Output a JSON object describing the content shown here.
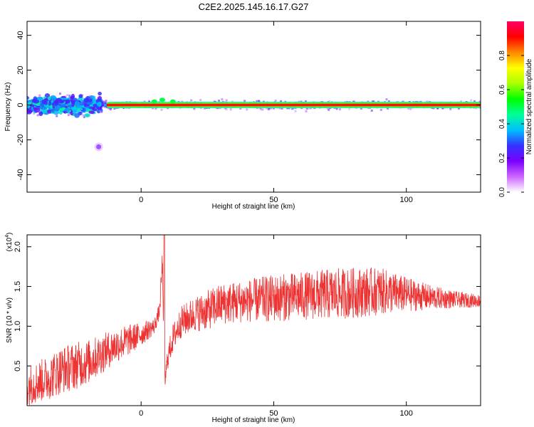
{
  "title": "C2E2.2025.145.16.17.G27",
  "chart_data": [
    {
      "type": "heatmap",
      "xlabel": "Height of straight line (km)",
      "ylabel": "Frequency (Hz)",
      "xlim": [
        -43,
        128
      ],
      "ylim": [
        -50,
        48
      ],
      "xticks": [
        0,
        50,
        100
      ],
      "yticks": [
        -40,
        -20,
        0,
        20,
        40
      ],
      "colorbar": {
        "label": "Normalized spectral amplitude",
        "range": [
          0,
          1
        ],
        "ticks": [
          "0.0",
          "0.2",
          "0.4",
          "0.6",
          "0.8"
        ],
        "colors": [
          "#ffffff",
          "#cc66ff",
          "#7a00ff",
          "#3333ff",
          "#00bfff",
          "#00ff99",
          "#00ff00",
          "#aaff00",
          "#ffff00",
          "#ff8800",
          "#ff0000",
          "#ff0066"
        ]
      },
      "features": {
        "carrier_frequency_hz": 0,
        "carrier_amplitude": 0.9,
        "early_blob": {
          "x_range": [
            -43,
            -15
          ],
          "freq_range": [
            -12,
            12
          ]
        },
        "isolated_spot": {
          "x": -16,
          "freq": -24
        }
      }
    },
    {
      "type": "line",
      "xlabel": "Height of straight line (km)",
      "ylabel": "SNR (10 * v/v)",
      "y_multiplier": "(x10",
      "y_multiplier_exp": "4",
      "xlim": [
        -43,
        128
      ],
      "ylim": [
        0,
        2.15
      ],
      "xticks": [
        0,
        50,
        100
      ],
      "yticks": [
        0.5,
        1.0,
        1.5,
        2.0
      ],
      "ytick_labels": [
        "0.5",
        "1.0",
        "1.5",
        "2.0"
      ],
      "color": "#ee3333",
      "series": [
        {
          "x": [
            -43,
            -35,
            -30,
            -25,
            -20,
            -15,
            -10,
            -5,
            0,
            5,
            7,
            8,
            9,
            10,
            12,
            15,
            20,
            25,
            30,
            40,
            50,
            60,
            70,
            80,
            90,
            100,
            110,
            120,
            128
          ],
          "mean": [
            0.25,
            0.35,
            0.45,
            0.5,
            0.55,
            0.65,
            0.75,
            0.82,
            0.9,
            1.0,
            1.2,
            1.8,
            0.3,
            0.6,
            0.85,
            1.05,
            1.15,
            1.2,
            1.28,
            1.32,
            1.35,
            1.38,
            1.4,
            1.42,
            1.44,
            1.4,
            1.36,
            1.33,
            1.32
          ],
          "spread": [
            0.25,
            0.28,
            0.3,
            0.3,
            0.28,
            0.25,
            0.22,
            0.2,
            0.15,
            0.1,
            0.1,
            0.2,
            0.1,
            0.15,
            0.18,
            0.2,
            0.22,
            0.25,
            0.26,
            0.27,
            0.3,
            0.3,
            0.32,
            0.32,
            0.3,
            0.22,
            0.15,
            0.1,
            0.08
          ]
        }
      ]
    }
  ]
}
